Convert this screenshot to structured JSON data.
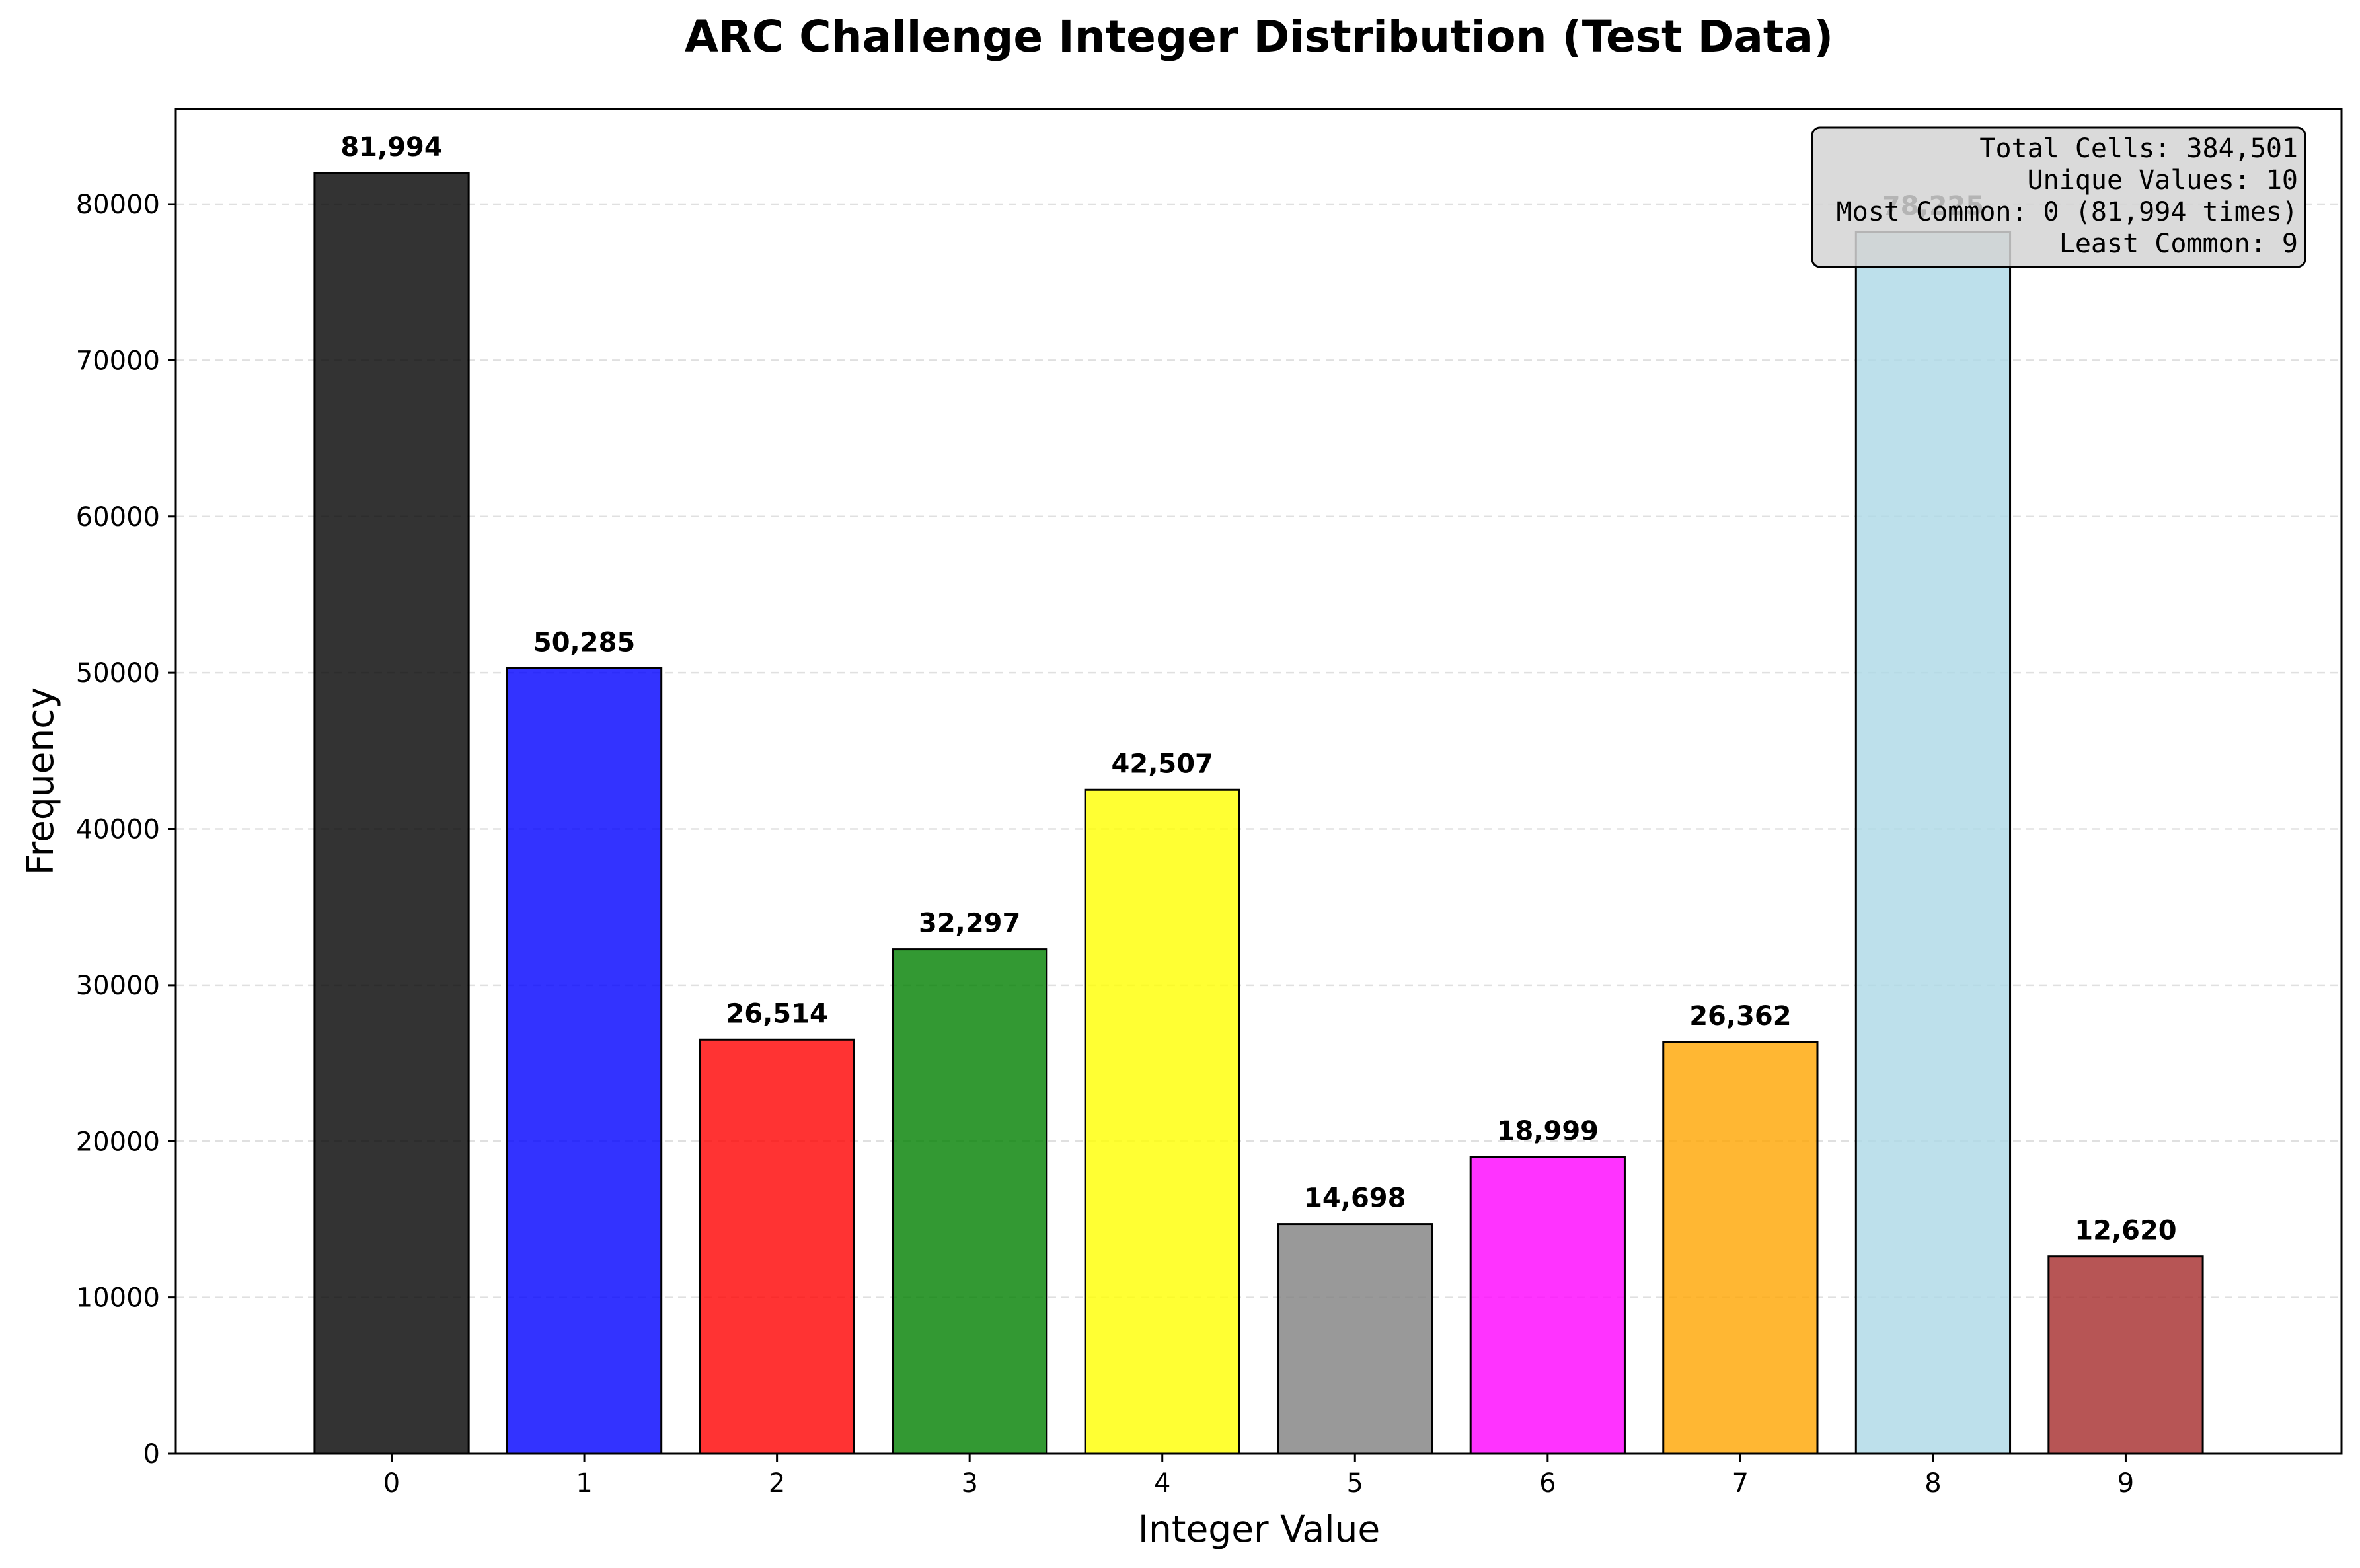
{
  "chart_data": {
    "type": "bar",
    "title": "ARC Challenge Integer Distribution (Test Data)",
    "xlabel": "Integer Value",
    "ylabel": "Frequency",
    "categories": [
      "0",
      "1",
      "2",
      "3",
      "4",
      "5",
      "6",
      "7",
      "8",
      "9"
    ],
    "values": [
      81994,
      50285,
      26514,
      32297,
      42507,
      14698,
      18999,
      26362,
      78225,
      12620
    ],
    "value_labels": [
      "81,994",
      "50,285",
      "26,514",
      "32,297",
      "42,507",
      "14,698",
      "18,999",
      "26,362",
      "78,225",
      "12,620"
    ],
    "bar_colors": [
      "#000000",
      "#0000ff",
      "#ff0000",
      "#008000",
      "#ffff00",
      "#808080",
      "#ff00ff",
      "#ffa500",
      "#add8e6",
      "#a52a2a"
    ],
    "ylim": [
      0,
      86093
    ],
    "yticks": [
      0,
      10000,
      20000,
      30000,
      40000,
      50000,
      60000,
      70000,
      80000
    ],
    "ytick_labels": [
      "0",
      "10000",
      "20000",
      "30000",
      "40000",
      "50000",
      "60000",
      "70000",
      "80000"
    ],
    "grid": "y-axis, dashed",
    "stats_box": {
      "placement": "top-right",
      "lines": [
        "Total Cells: 384,501",
        "Unique Values: 10",
        "Most Common: 0 (81,994 times)",
        "Least Common: 9"
      ]
    }
  }
}
